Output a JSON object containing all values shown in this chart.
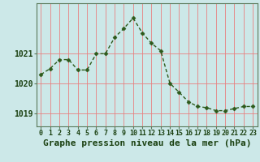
{
  "x": [
    0,
    1,
    2,
    3,
    4,
    5,
    6,
    7,
    8,
    9,
    10,
    11,
    12,
    13,
    14,
    15,
    16,
    17,
    18,
    19,
    20,
    21,
    22,
    23
  ],
  "y": [
    1020.3,
    1020.5,
    1020.8,
    1020.8,
    1020.45,
    1020.45,
    1021.0,
    1021.0,
    1021.55,
    1021.85,
    1022.2,
    1021.7,
    1021.35,
    1021.1,
    1020.0,
    1019.7,
    1019.38,
    1019.22,
    1019.18,
    1019.08,
    1019.08,
    1019.15,
    1019.22,
    1019.22
  ],
  "line_color": "#2d5a1b",
  "marker": "D",
  "marker_size": 2.5,
  "line_width": 1.0,
  "bg_color": "#cce8e8",
  "grid_color": "#e88080",
  "grid_linewidth": 0.6,
  "ylabel_ticks": [
    1019,
    1020,
    1021
  ],
  "xlabel": "Graphe pression niveau de la mer (hPa)",
  "xlabel_fontsize": 8,
  "xlabel_color": "#1a4010",
  "tick_color": "#1a4010",
  "ytick_fontsize": 7,
  "xtick_fontsize": 6,
  "ylim": [
    1018.55,
    1022.7
  ],
  "xlim": [
    -0.5,
    23.5
  ],
  "axis_color": "#5a7a5a",
  "figsize": [
    3.2,
    2.0
  ],
  "dpi": 100
}
